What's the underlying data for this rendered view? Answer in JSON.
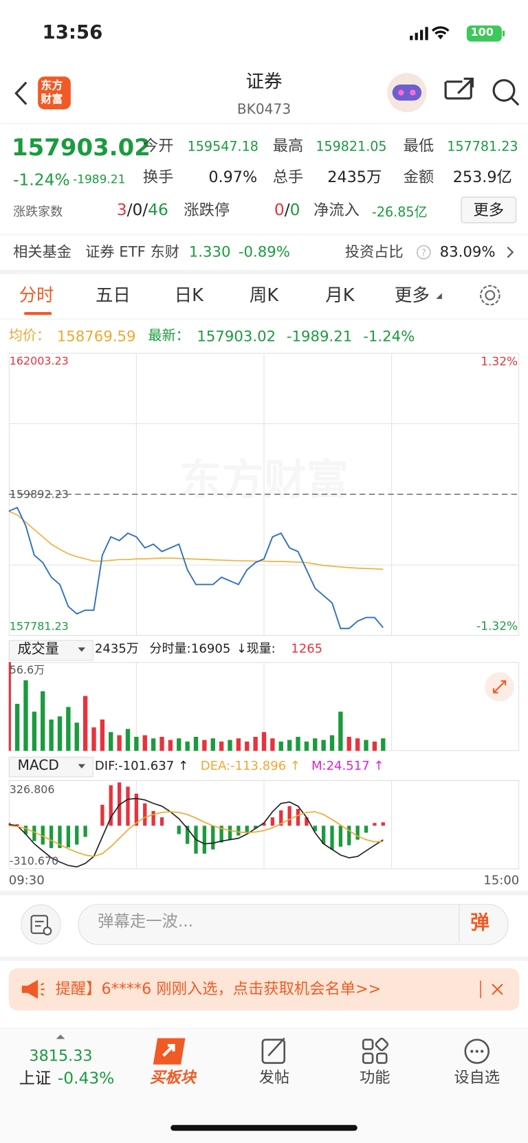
{
  "status": {
    "time": "13:56",
    "battery": "100"
  },
  "header": {
    "logo": [
      "东方",
      "财富"
    ],
    "title": "证券",
    "code": "BK0473"
  },
  "quote": {
    "price": "157903.02",
    "change_pct": "-1.24%",
    "change": "-1989.21",
    "stats": [
      {
        "label": "今开",
        "value": "159547.18"
      },
      {
        "label": "最高",
        "value": "159821.05"
      },
      {
        "label": "最低",
        "value": "157781.23"
      },
      {
        "label": "换手",
        "value": "0.97%"
      },
      {
        "label": "总手",
        "value": "2435万"
      },
      {
        "label": "金额",
        "value": "253.9亿"
      }
    ],
    "breadth": {
      "label": "涨跌家数",
      "up": "3",
      "sep": "/",
      "flat": "0",
      "down": "46"
    },
    "limit": {
      "label": "涨跌停",
      "up": "0",
      "sep": "/",
      "down": "0"
    },
    "inflow": {
      "label": "净流入",
      "value": "-26.85亿"
    },
    "more": "更多"
  },
  "fund": {
    "label": "相关基金",
    "name": "证券 ETF 东财",
    "price": "1.330",
    "change": "-0.89%",
    "ratio_label": "投资占比",
    "ratio": "83.09%"
  },
  "tabs": [
    "分时",
    "五日",
    "日K",
    "周K",
    "月K",
    "更多"
  ],
  "info": {
    "avg": "158769.59",
    "last": "157903.02",
    "change": "-1989.21",
    "change_pct": "-1.24%"
  },
  "watermark": "东方财富",
  "volume_header": {
    "selector": "成交量",
    "total": "2435万",
    "label": "分时量:",
    "value": "16905",
    "arrow": "↓",
    "now_label": "现量:",
    "now": "1265"
  },
  "macd_header": {
    "selector": "MACD"
  },
  "comment": {
    "placeholder": "弹幕走一波...",
    "button": "弹"
  },
  "banner": {
    "text": "提醒】6****6 刚刚入选，点击获取机会名单>>"
  },
  "nav": {
    "index_value": "3815.33",
    "index_name": "上证",
    "index_change": "-0.43%",
    "items": [
      "买板块",
      "发帖",
      "功能",
      "设自选"
    ]
  },
  "chart_data": [
    {
      "type": "line",
      "grid": true,
      "x": [
        0,
        4,
        8,
        12,
        16,
        20,
        24,
        28,
        32,
        36,
        40,
        44,
        48,
        52,
        56,
        60,
        64,
        68,
        72,
        76,
        80,
        84,
        88,
        92,
        96,
        100,
        104,
        108,
        112,
        116,
        120,
        124,
        128,
        132,
        136,
        140,
        144,
        148,
        152,
        156,
        160,
        164,
        168,
        172,
        176
      ],
      "xlim": [
        0,
        240
      ],
      "xticks": [
        {
          "value": 0,
          "label": "09:30"
        },
        {
          "value": 240,
          "label": "15:00"
        }
      ],
      "ylim": [
        157781.23,
        162003.23
      ],
      "yticks": [
        162003.23,
        159892.23,
        157781.23
      ],
      "y2lim": [
        -1.32,
        1.32
      ],
      "y2ticks": [
        {
          "value": 1.32,
          "label": "1.32%"
        },
        {
          "value": -1.32,
          "label": "-1.32%"
        }
      ],
      "series": [
        {
          "name": "均价：",
          "color": "#f0b23c",
          "values": [
            159640,
            159585,
            159476,
            159366,
            159257,
            159148,
            159071,
            159005,
            158962,
            158929,
            158896,
            158896,
            158907,
            158918,
            158918,
            158929,
            158929,
            158935,
            158940,
            158940,
            158935,
            158930,
            158925,
            158920,
            158915,
            158910,
            158905,
            158900,
            158900,
            158895,
            158895,
            158890,
            158890,
            158885,
            158880,
            158874,
            158852,
            158830,
            158819,
            158808,
            158798,
            158790,
            158785,
            158780,
            158775
          ]
        },
        {
          "name": "最新：",
          "color": "#2c6fc4",
          "values": [
            159640,
            159695,
            159421,
            158984,
            158874,
            158655,
            158546,
            158218,
            158108,
            158163,
            158163,
            158984,
            159257,
            159202,
            159312,
            159257,
            159093,
            159148,
            159038,
            159093,
            159148,
            158765,
            158546,
            158546,
            158546,
            158655,
            158601,
            158546,
            158765,
            158874,
            158929,
            159257,
            159312,
            159093,
            159038,
            158765,
            158491,
            158382,
            158272,
            157890,
            157890,
            157999,
            158054,
            158054,
            157903
          ]
        }
      ]
    },
    {
      "type": "bar",
      "ylim": [
        0,
        56.6
      ],
      "yticks": [
        {
          "value": 56.6,
          "label": "56.6万"
        }
      ],
      "values": [
        56.6,
        30,
        45,
        25,
        38,
        20,
        22,
        28,
        18,
        35,
        15,
        20,
        12,
        10,
        14,
        9,
        10,
        8,
        9,
        7,
        8,
        6,
        9,
        7,
        8,
        6,
        7,
        8,
        6,
        9,
        12,
        8,
        6,
        7,
        9,
        6,
        8,
        7,
        10,
        25,
        9,
        8,
        7,
        6,
        8
      ],
      "colors": [
        "#e8323c",
        "#1a9b3e",
        "#1a9b3e",
        "#1a9b3e",
        "#1a9b3e",
        "#1a9b3e",
        "#1a9b3e",
        "#1a9b3e",
        "#1a9b3e",
        "#e8323c",
        "#e8323c",
        "#e8323c",
        "#1a9b3e",
        "#e8323c",
        "#1a9b3e",
        "#1a9b3e",
        "#e8323c",
        "#1a9b3e",
        "#e8323c",
        "#e8323c",
        "#1a9b3e",
        "#1a9b3e",
        "#1a9b3e",
        "#e8323c",
        "#1a9b3e",
        "#e8323c",
        "#1a9b3e",
        "#e8323c",
        "#e8323c",
        "#e8323c",
        "#e8323c",
        "#e8323c",
        "#1a9b3e",
        "#1a9b3e",
        "#1a9b3e",
        "#1a9b3e",
        "#1a9b3e",
        "#1a9b3e",
        "#1a9b3e",
        "#1a9b3e",
        "#e8323c",
        "#e8323c",
        "#1a9b3e",
        "#e8323c",
        "#1a9b3e"
      ]
    },
    {
      "type": "combo",
      "ylim": [
        -310.67,
        326.806
      ],
      "yticks": [
        326.806,
        {
          "value": -310.67,
          "label": "-310.670"
        }
      ],
      "series": [
        {
          "name": "DIF:-101.637 ↑",
          "type": "line",
          "color": "#222222",
          "values": [
            10,
            0,
            -60,
            -130,
            -180,
            -230,
            -260,
            -285,
            -295,
            -270,
            -220,
            -80,
            60,
            150,
            190,
            195,
            185,
            160,
            140,
            100,
            50,
            -20,
            -100,
            -130,
            -125,
            -110,
            -100,
            -90,
            -60,
            -20,
            20,
            100,
            160,
            170,
            140,
            60,
            -50,
            -130,
            -170,
            -210,
            -230,
            -220,
            -180,
            -140,
            -101.637
          ]
        },
        {
          "name": "DEA:-113.896 ↑",
          "type": "line",
          "color": "#f0a830",
          "values": [
            0,
            -5,
            -20,
            -45,
            -75,
            -105,
            -135,
            -165,
            -190,
            -210,
            -220,
            -200,
            -150,
            -90,
            -30,
            20,
            60,
            80,
            95,
            100,
            95,
            80,
            55,
            25,
            0,
            -20,
            -35,
            -45,
            -50,
            -45,
            -35,
            -15,
            15,
            45,
            75,
            95,
            100,
            80,
            45,
            5,
            -35,
            -75,
            -100,
            -115,
            -113.896
          ]
        },
        {
          "name": "M:24.517 ↑",
          "type": "bar",
          "color": "#e020d8",
          "values": [
            20,
            10,
            -60,
            -110,
            -135,
            -160,
            -160,
            -155,
            -135,
            -80,
            0,
            150,
            290,
            310,
            280,
            230,
            160,
            105,
            60,
            0,
            -60,
            -130,
            -200,
            -200,
            -170,
            -120,
            -100,
            -70,
            -50,
            -20,
            20,
            60,
            110,
            140,
            120,
            60,
            -40,
            -130,
            -170,
            -150,
            -140,
            -100,
            -50,
            20,
            24.517
          ]
        }
      ]
    }
  ]
}
